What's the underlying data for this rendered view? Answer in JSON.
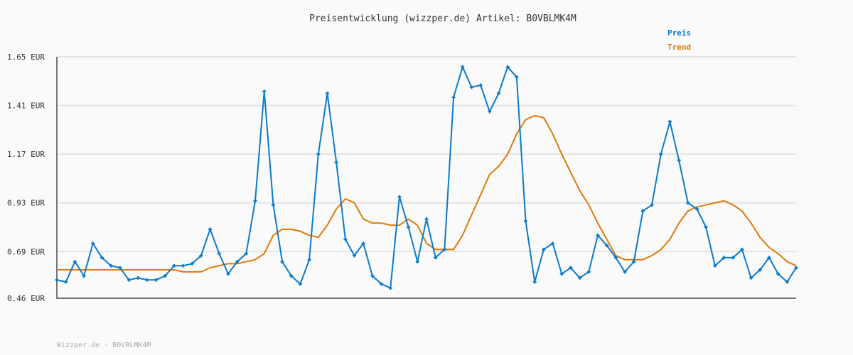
{
  "chart_data": {
    "type": "line",
    "title": "Preisentwicklung (wizzper.de) Artikel: B0VBLMK4M",
    "ylim": [
      0.46,
      1.65
    ],
    "yticks": [
      "0.46 EUR",
      "0.69 EUR",
      "0.93 EUR",
      "1.17 EUR",
      "1.41 EUR",
      "1.65 EUR"
    ],
    "ytick_values": [
      0.46,
      0.69,
      0.93,
      1.17,
      1.41,
      1.65
    ],
    "grid": true,
    "legend_position": "top-right",
    "series": [
      {
        "name": "Preis",
        "color": "#0a7acc",
        "markers": true,
        "values": [
          0.55,
          0.54,
          0.64,
          0.57,
          0.73,
          0.66,
          0.62,
          0.61,
          0.55,
          0.56,
          0.55,
          0.55,
          0.57,
          0.62,
          0.62,
          0.63,
          0.67,
          0.8,
          0.68,
          0.58,
          0.64,
          0.68,
          0.94,
          1.48,
          0.92,
          0.64,
          0.57,
          0.53,
          0.65,
          1.17,
          1.47,
          1.13,
          0.75,
          0.67,
          0.73,
          0.57,
          0.53,
          0.51,
          0.96,
          0.81,
          0.64,
          0.85,
          0.66,
          0.7,
          1.45,
          1.6,
          1.5,
          1.51,
          1.38,
          1.47,
          1.6,
          1.55,
          0.84,
          0.54,
          0.7,
          0.73,
          0.58,
          0.61,
          0.56,
          0.59,
          0.77,
          0.72,
          0.66,
          0.59,
          0.64,
          0.89,
          0.92,
          1.17,
          1.33,
          1.14,
          0.93,
          0.9,
          0.81,
          0.62,
          0.66,
          0.66,
          0.7,
          0.56,
          0.6,
          0.66,
          0.58,
          0.54,
          0.61
        ]
      },
      {
        "name": "Trend",
        "color": "#dd7a0a",
        "markers": false,
        "values": [
          0.6,
          0.6,
          0.6,
          0.6,
          0.6,
          0.6,
          0.6,
          0.6,
          0.6,
          0.6,
          0.6,
          0.6,
          0.6,
          0.6,
          0.59,
          0.59,
          0.59,
          0.61,
          0.62,
          0.63,
          0.63,
          0.64,
          0.65,
          0.68,
          0.77,
          0.8,
          0.8,
          0.79,
          0.77,
          0.76,
          0.82,
          0.9,
          0.95,
          0.93,
          0.85,
          0.83,
          0.83,
          0.82,
          0.82,
          0.85,
          0.82,
          0.73,
          0.7,
          0.7,
          0.7,
          0.77,
          0.87,
          0.97,
          1.07,
          1.11,
          1.17,
          1.27,
          1.34,
          1.36,
          1.35,
          1.27,
          1.17,
          1.08,
          0.99,
          0.92,
          0.83,
          0.75,
          0.67,
          0.65,
          0.65,
          0.65,
          0.67,
          0.7,
          0.75,
          0.83,
          0.89,
          0.91,
          0.92,
          0.93,
          0.94,
          0.92,
          0.89,
          0.83,
          0.76,
          0.71,
          0.68,
          0.64,
          0.62
        ]
      }
    ]
  },
  "footer": "Wizzper.de - B0VBLMK4M"
}
